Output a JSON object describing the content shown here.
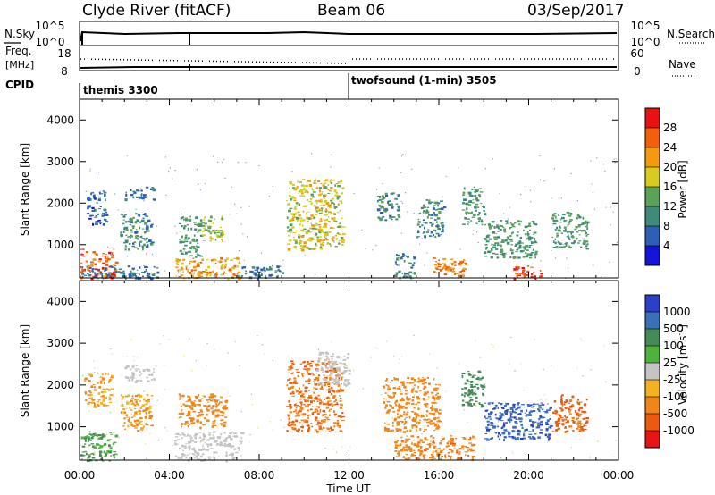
{
  "header": {
    "station": "Clyde River (fitACF)",
    "beam": "Beam 06",
    "date": "03/Sep/2017"
  },
  "strip": {
    "nsky_label": "N.Sky",
    "nsearch_label": "N.Search",
    "freq_label": "Freq.",
    "freq_unit": "[MHz]",
    "nave_label": "Nave",
    "cpid_label": "CPID",
    "nsky_ticks": [
      "10^5",
      "10^0"
    ],
    "nsearch_ticks": [
      "10^5",
      "10^0"
    ],
    "freq_ticks": [
      "18",
      "8"
    ],
    "nave_ticks": [
      "60",
      "0"
    ],
    "cpid": [
      {
        "label": "themis 3300",
        "start_hour": 0,
        "end_hour": 12
      },
      {
        "label": "twofsound (1-min) 3505",
        "start_hour": 12,
        "end_hour": 24
      }
    ]
  },
  "panels": {
    "ylabel": "Slant Range [km]",
    "xlabel": "Time UT",
    "xticks": [
      "00:00",
      "04:00",
      "08:00",
      "12:00",
      "16:00",
      "20:00",
      "00:00"
    ],
    "yticks": [
      "1000",
      "2000",
      "3000",
      "4000"
    ],
    "power_label": "Power [dB]",
    "power_ticks": [
      "4",
      "8",
      "12",
      "16",
      "20",
      "24",
      "28"
    ],
    "velocity_label": "Velocity",
    "velocity_unit": "[m s",
    "velocity_unit_exp": "-1",
    "velocity_unit_close": "]",
    "velocity_ticks": [
      "1000",
      "500",
      "100",
      "25",
      "-25",
      "-100",
      "-500",
      "-1000"
    ]
  },
  "colors": {
    "power_scale": [
      "#1515d8",
      "#2c5fb5",
      "#3f8a7a",
      "#5aa25a",
      "#d6cc1f",
      "#f39a10",
      "#f2600e",
      "#e81212"
    ],
    "velocity_scale": [
      "#2a40c8",
      "#3a70b8",
      "#458b58",
      "#4fb23c",
      "#c4c4c4",
      "#f2b320",
      "#f0861a",
      "#ec5a12",
      "#e81515"
    ]
  },
  "chart_data": [
    {
      "type": "heatmap",
      "title": "Power",
      "xlabel": "Time UT",
      "ylabel": "Slant Range [km]",
      "xlim": [
        0,
        24
      ],
      "ylim": [
        200,
        4500
      ],
      "colorbar": {
        "label": "Power [dB]",
        "range": [
          0,
          32
        ]
      },
      "patches": [
        {
          "t": [
            0.0,
            1.6
          ],
          "r": [
            200,
            900
          ],
          "v": 26
        },
        {
          "t": [
            0.0,
            3.5
          ],
          "r": [
            200,
            500
          ],
          "v": 8
        },
        {
          "t": [
            0.3,
            1.2
          ],
          "r": [
            1500,
            2300
          ],
          "v": 6
        },
        {
          "t": [
            2.0,
            3.3
          ],
          "r": [
            2100,
            2400
          ],
          "v": 8
        },
        {
          "t": [
            1.8,
            3.2
          ],
          "r": [
            900,
            1800
          ],
          "v": 10
        },
        {
          "t": [
            4.4,
            5.4
          ],
          "r": [
            700,
            1700
          ],
          "v": 12
        },
        {
          "t": [
            5.4,
            6.4
          ],
          "r": [
            1100,
            1700
          ],
          "v": 16
        },
        {
          "t": [
            4.2,
            7.2
          ],
          "r": [
            200,
            700
          ],
          "v": 22
        },
        {
          "t": [
            7.0,
            9.0
          ],
          "r": [
            200,
            500
          ],
          "v": 8
        },
        {
          "t": [
            9.2,
            11.7
          ],
          "r": [
            900,
            2600
          ],
          "v": 18
        },
        {
          "t": [
            13.2,
            14.2
          ],
          "r": [
            1600,
            2300
          ],
          "v": 10
        },
        {
          "t": [
            14.0,
            14.9
          ],
          "r": [
            200,
            800
          ],
          "v": 10
        },
        {
          "t": [
            15.0,
            16.2
          ],
          "r": [
            1200,
            2100
          ],
          "v": 10
        },
        {
          "t": [
            15.7,
            17.2
          ],
          "r": [
            200,
            700
          ],
          "v": 24
        },
        {
          "t": [
            17.0,
            18.0
          ],
          "r": [
            1500,
            2400
          ],
          "v": 12
        },
        {
          "t": [
            18.0,
            20.3
          ],
          "r": [
            700,
            1600
          ],
          "v": 12
        },
        {
          "t": [
            19.3,
            20.6
          ],
          "r": [
            200,
            500
          ],
          "v": 28
        },
        {
          "t": [
            21.0,
            22.6
          ],
          "r": [
            900,
            1800
          ],
          "v": 12
        }
      ]
    },
    {
      "type": "heatmap",
      "title": "Velocity",
      "xlabel": "Time UT",
      "ylabel": "Slant Range [km]",
      "xlim": [
        0,
        24
      ],
      "ylim": [
        200,
        4500
      ],
      "colorbar": {
        "label": "Velocity [m s-1]",
        "range": [
          -1000,
          1000
        ]
      },
      "patches": [
        {
          "t": [
            0.0,
            1.6
          ],
          "r": [
            200,
            900
          ],
          "v": 100
        },
        {
          "t": [
            0.2,
            1.4
          ],
          "r": [
            1500,
            2300
          ],
          "v": -100
        },
        {
          "t": [
            1.8,
            3.2
          ],
          "r": [
            900,
            1800
          ],
          "v": -100
        },
        {
          "t": [
            2.0,
            3.3
          ],
          "r": [
            2100,
            2500
          ],
          "v": 0
        },
        {
          "t": [
            4.2,
            7.2
          ],
          "r": [
            200,
            900
          ],
          "v": 0
        },
        {
          "t": [
            4.4,
            6.5
          ],
          "r": [
            1000,
            1800
          ],
          "v": -200
        },
        {
          "t": [
            9.2,
            11.7
          ],
          "r": [
            900,
            2600
          ],
          "v": -500
        },
        {
          "t": [
            10.5,
            12.0
          ],
          "r": [
            2000,
            2800
          ],
          "v": 0
        },
        {
          "t": [
            13.5,
            16.0
          ],
          "r": [
            900,
            2200
          ],
          "v": -300
        },
        {
          "t": [
            14.0,
            17.5
          ],
          "r": [
            200,
            800
          ],
          "v": -400
        },
        {
          "t": [
            17.0,
            18.0
          ],
          "r": [
            1500,
            2400
          ],
          "v": 300
        },
        {
          "t": [
            18.0,
            21.0
          ],
          "r": [
            700,
            1600
          ],
          "v": 900
        },
        {
          "t": [
            21.0,
            22.6
          ],
          "r": [
            900,
            1800
          ],
          "v": -600
        }
      ]
    }
  ]
}
